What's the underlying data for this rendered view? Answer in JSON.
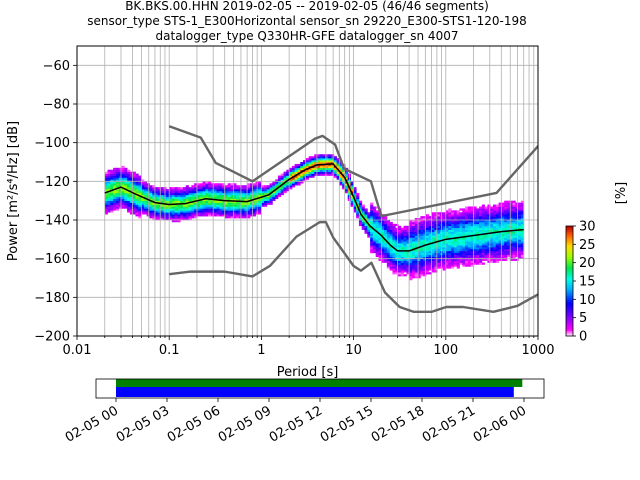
{
  "figure": {
    "title_lines": [
      "BK.BKS.00.HHN   2019-02-05 -- 2019-02-05  (46/46 segments)",
      "sensor_type STS-1_E300Horizontal sensor_sn 29220_E300-STS1-120-198",
      "datalogger_type Q330HR-GFE datalogger_sn 4007"
    ]
  },
  "chart_data": [
    {
      "type": "heatmap",
      "title": "BK.BKS.00.HHN   2019-02-05 -- 2019-02-05  (46/46 segments)",
      "xlabel": "Period [s]",
      "ylabel": "Power [m²/s⁴/Hz] [dB]",
      "xscale": "log",
      "xlim": [
        0.01,
        1000
      ],
      "ylim": [
        -200,
        -50
      ],
      "x_ticks": [
        0.01,
        0.1,
        1,
        10,
        100,
        1000
      ],
      "x_tick_labels": [
        "0.01",
        "0.1",
        "1",
        "10",
        "100",
        "1000"
      ],
      "y_ticks": [
        -200,
        -180,
        -160,
        -140,
        -120,
        -100,
        -80,
        -60
      ],
      "y_tick_labels": [
        "−200",
        "−180",
        "−160",
        "−140",
        "−120",
        "−100",
        "−80",
        "−60"
      ],
      "grid": true,
      "colorbar": {
        "label": "[%]",
        "range": [
          0,
          30
        ],
        "ticks": [
          0,
          5,
          10,
          15,
          20,
          25,
          30
        ],
        "tick_labels": [
          "0",
          "5",
          "10",
          "15",
          "20",
          "25",
          "30"
        ]
      },
      "series": [
        {
          "kind": "noise-model-high",
          "color": "#666666",
          "x": [
            0.1,
            0.22,
            0.32,
            0.8,
            3.8,
            4.6,
            6.3,
            7.9,
            15.4,
            20,
            354.8,
            10000
          ],
          "y": [
            -91.5,
            -97.4,
            -110.5,
            -120,
            -98,
            -96.5,
            -101,
            -113.5,
            -120,
            -138,
            -126,
            -48
          ]
        },
        {
          "kind": "noise-model-low",
          "color": "#666666",
          "x": [
            0.1,
            0.17,
            0.4,
            0.8,
            1.24,
            2.4,
            4.3,
            5,
            6,
            10,
            12,
            15.6,
            21.9,
            31.6,
            45,
            70,
            101,
            154,
            328,
            600,
            1000
          ],
          "y": [
            -168,
            -166.7,
            -166.7,
            -169.2,
            -163.7,
            -148.6,
            -141.1,
            -141.1,
            -149,
            -163.8,
            -166.2,
            -162.1,
            -177.5,
            -185,
            -187.5,
            -187.5,
            -185,
            -185,
            -187.5,
            -184.4,
            -178.5
          ]
        },
        {
          "kind": "mean",
          "color": "#000000",
          "x": [
            0.02,
            0.03,
            0.045,
            0.07,
            0.1,
            0.15,
            0.25,
            0.4,
            0.7,
            1.2,
            2,
            3,
            4,
            6,
            8,
            10,
            12,
            15,
            20,
            25,
            30,
            40,
            60,
            100,
            200,
            400,
            700
          ],
          "y": [
            -126,
            -123,
            -127,
            -131,
            -132,
            -131.5,
            -129,
            -130,
            -130.5,
            -127,
            -119,
            -114,
            -111.5,
            -111,
            -118,
            -128,
            -137,
            -143,
            -148,
            -153,
            -156,
            -156,
            -153,
            -150,
            -148,
            -146,
            -145
          ]
        }
      ]
    },
    {
      "type": "bar",
      "xlabel": "",
      "x_tick_labels": [
        "02-05 00",
        "02-05 03",
        "02-05 06",
        "02-05 09",
        "02-05 12",
        "02-05 15",
        "02-05 18",
        "02-05 21",
        "02-06 00"
      ],
      "x_range_hours": [
        0,
        24
      ],
      "series": [
        {
          "kind": "data-availability",
          "color": "#008000",
          "start_hour": 0,
          "end_hour": 23.9
        },
        {
          "kind": "psd-segments-used",
          "color": "#0000ff",
          "start_hour": 0,
          "end_hour": 23.4
        }
      ]
    }
  ]
}
